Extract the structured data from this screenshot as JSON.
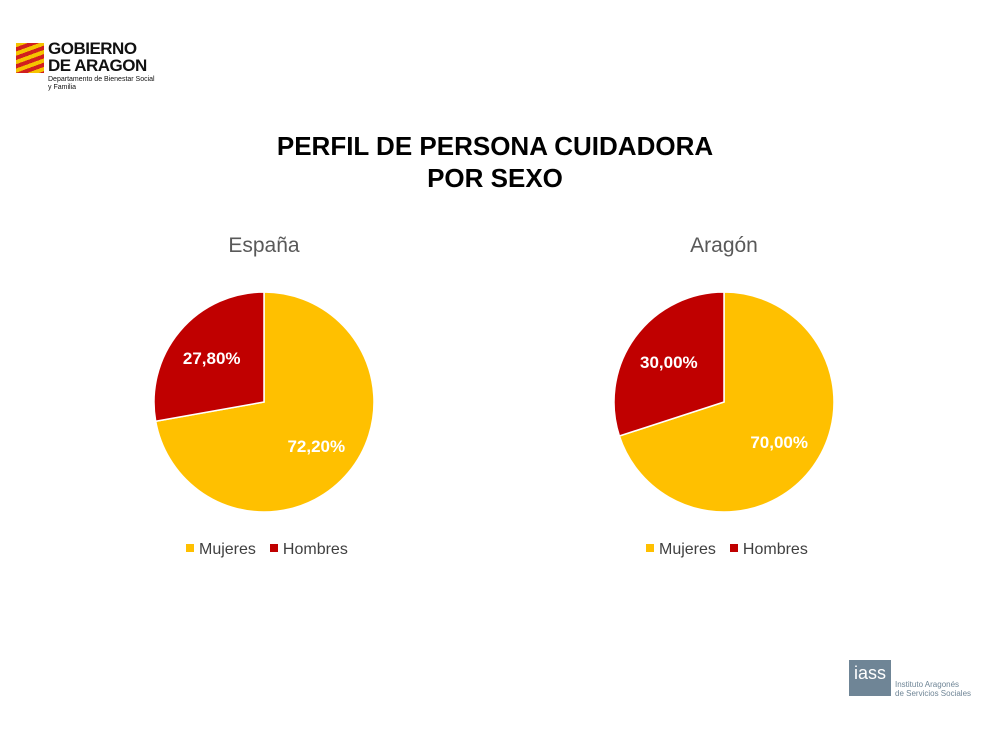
{
  "logo": {
    "line1": "GOBIERNO",
    "line2": "DE ARAGON",
    "dept1": "Departamento de Bienestar Social",
    "dept2": "y Familia"
  },
  "title": {
    "line1": "PERFIL DE PERSONA CUIDADORA",
    "line2": "POR SEXO"
  },
  "footer_logo": {
    "mark": "iass",
    "line1": "Instituto Aragonés",
    "line2": "de Servicios Sociales"
  },
  "colors": {
    "Mujeres": "#FFC000",
    "Hombres": "#C00000"
  },
  "chart_data": [
    {
      "type": "pie",
      "title": "España",
      "categories": [
        "Mujeres",
        "Hombres"
      ],
      "values": [
        72.2,
        27.8
      ],
      "labels": [
        "72,20%",
        "27,80%"
      ],
      "legend": [
        "Mujeres",
        "Hombres"
      ],
      "legend_position": "bottom"
    },
    {
      "type": "pie",
      "title": "Aragón",
      "categories": [
        "Mujeres",
        "Hombres"
      ],
      "values": [
        70.0,
        30.0
      ],
      "labels": [
        "70,00%",
        "30,00%"
      ],
      "legend": [
        "Mujeres",
        "Hombres"
      ],
      "legend_position": "bottom"
    }
  ]
}
